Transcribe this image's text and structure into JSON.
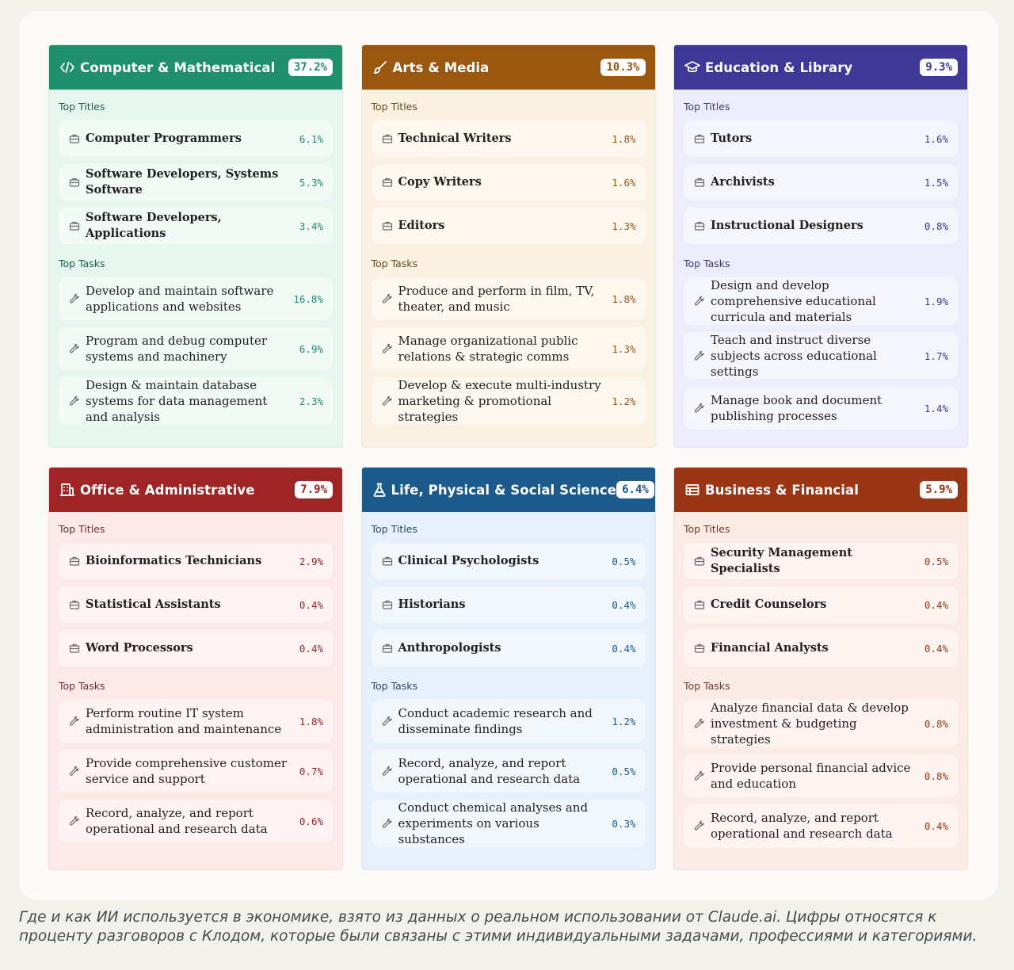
{
  "cards": [
    {
      "title": "Computer & Mathematical",
      "percent": "37.2%",
      "icon": "code-icon",
      "colors": {
        "header": "#1f8f6c",
        "bg": "#e7f5ef",
        "row": "#f2faf6",
        "accent": "#1f8f6c",
        "label": "#1d5f4a"
      },
      "titles_label": "Top Titles",
      "tasks_label": "Top Tasks",
      "titles": [
        {
          "text": "Computer Programmers",
          "pct": "6.1%"
        },
        {
          "text": "Software Developers, Systems Software",
          "pct": "5.3%"
        },
        {
          "text": "Software Developers, Applications",
          "pct": "3.4%"
        }
      ],
      "tasks": [
        {
          "text": "Develop and maintain software applications and websites",
          "pct": "16.8%"
        },
        {
          "text": "Program and debug computer systems and machinery",
          "pct": "6.9%"
        },
        {
          "text": "Design & maintain database systems for data management and analysis",
          "pct": "2.3%"
        }
      ]
    },
    {
      "title": "Arts & Media",
      "percent": "10.3%",
      "icon": "brush-icon",
      "colors": {
        "header": "#99570f",
        "bg": "#fbf1e3",
        "row": "#fdf8ef",
        "accent": "#99570f",
        "label": "#6b4a22"
      },
      "titles_label": "Top Titles",
      "tasks_label": "Top Tasks",
      "titles": [
        {
          "text": "Technical Writers",
          "pct": "1.8%"
        },
        {
          "text": "Copy Writers",
          "pct": "1.6%"
        },
        {
          "text": "Editors",
          "pct": "1.3%"
        }
      ],
      "tasks": [
        {
          "text": "Produce and perform in film, TV, theater, and music",
          "pct": "1.8%"
        },
        {
          "text": "Manage organizational public relations & strategic comms",
          "pct": "1.3%"
        },
        {
          "text": "Develop & execute multi-industry marketing & promotional strategies",
          "pct": "1.2%"
        }
      ]
    },
    {
      "title": "Education & Library",
      "percent": "9.3%",
      "icon": "graduation-cap-icon",
      "colors": {
        "header": "#3f3896",
        "bg": "#ececfa",
        "row": "#f5f5fc",
        "accent": "#3f3896",
        "label": "#3f3a6f"
      },
      "titles_label": "Top Titles",
      "tasks_label": "Top Tasks",
      "titles": [
        {
          "text": "Tutors",
          "pct": "1.6%"
        },
        {
          "text": "Archivists",
          "pct": "1.5%"
        },
        {
          "text": "Instructional Designers",
          "pct": "0.8%"
        }
      ],
      "tasks": [
        {
          "text": "Design and develop comprehensive educational curricula and materials",
          "pct": "1.9%"
        },
        {
          "text": "Teach and instruct diverse subjects across educational settings",
          "pct": "1.7%"
        },
        {
          "text": "Manage book and document publishing processes",
          "pct": "1.4%"
        }
      ]
    },
    {
      "title": "Office & Administrative",
      "percent": "7.9%",
      "icon": "building-icon",
      "colors": {
        "header": "#9e2426",
        "bg": "#fbe9ea",
        "row": "#fdf3f3",
        "accent": "#9e2426",
        "label": "#6f2c2e"
      },
      "titles_label": "Top Titles",
      "tasks_label": "Top Tasks",
      "titles": [
        {
          "text": "Bioinformatics Technicians",
          "pct": "2.9%"
        },
        {
          "text": "Statistical Assistants",
          "pct": "0.4%"
        },
        {
          "text": "Word Processors",
          "pct": "0.4%"
        }
      ],
      "tasks": [
        {
          "text": "Perform routine IT system administration and maintenance",
          "pct": "1.8%"
        },
        {
          "text": "Provide comprehensive customer service and support",
          "pct": "0.7%"
        },
        {
          "text": "Record, analyze, and report operational and research data",
          "pct": "0.6%"
        }
      ]
    },
    {
      "title": "Life, Physical & Social Science",
      "percent": "6.4%",
      "icon": "flask-icon",
      "colors": {
        "header": "#1c5a8c",
        "bg": "#e6f0fa",
        "row": "#f2f7fc",
        "accent": "#1c5a8c",
        "label": "#2a4a66"
      },
      "titles_label": "Top Titles",
      "tasks_label": "Top Tasks",
      "titles": [
        {
          "text": "Clinical Psychologists",
          "pct": "0.5%"
        },
        {
          "text": "Historians",
          "pct": "0.4%"
        },
        {
          "text": "Anthropologists",
          "pct": "0.4%"
        }
      ],
      "tasks": [
        {
          "text": "Conduct academic research and disseminate findings",
          "pct": "1.2%"
        },
        {
          "text": "Record, analyze, and report operational and research data",
          "pct": "0.5%"
        },
        {
          "text": "Conduct chemical analyses and experiments on various substances",
          "pct": "0.3%"
        }
      ]
    },
    {
      "title": "Business & Financial",
      "percent": "5.9%",
      "icon": "table-icon",
      "colors": {
        "header": "#9a3616",
        "bg": "#fbebe6",
        "row": "#fdf4f1",
        "accent": "#9a3616",
        "label": "#6f3a2a"
      },
      "titles_label": "Top Titles",
      "tasks_label": "Top Tasks",
      "titles": [
        {
          "text": "Security Management Specialists",
          "pct": "0.5%"
        },
        {
          "text": "Credit Counselors",
          "pct": "0.4%"
        },
        {
          "text": "Financial Analysts",
          "pct": "0.4%"
        }
      ],
      "tasks": [
        {
          "text": "Analyze financial data & develop investment & budgeting strategies",
          "pct": "0.8%"
        },
        {
          "text": "Provide personal financial advice and education",
          "pct": "0.8%"
        },
        {
          "text": "Record, analyze, and report operational and research data",
          "pct": "0.4%"
        }
      ]
    }
  ],
  "caption": "Где и как ИИ используется в экономике, взято из данных о реальном использовании от Claude.ai. Цифры относятся к проценту разговоров с Клодом, которые были связаны с этими индивидуальными задачами, профессиями и категориями."
}
